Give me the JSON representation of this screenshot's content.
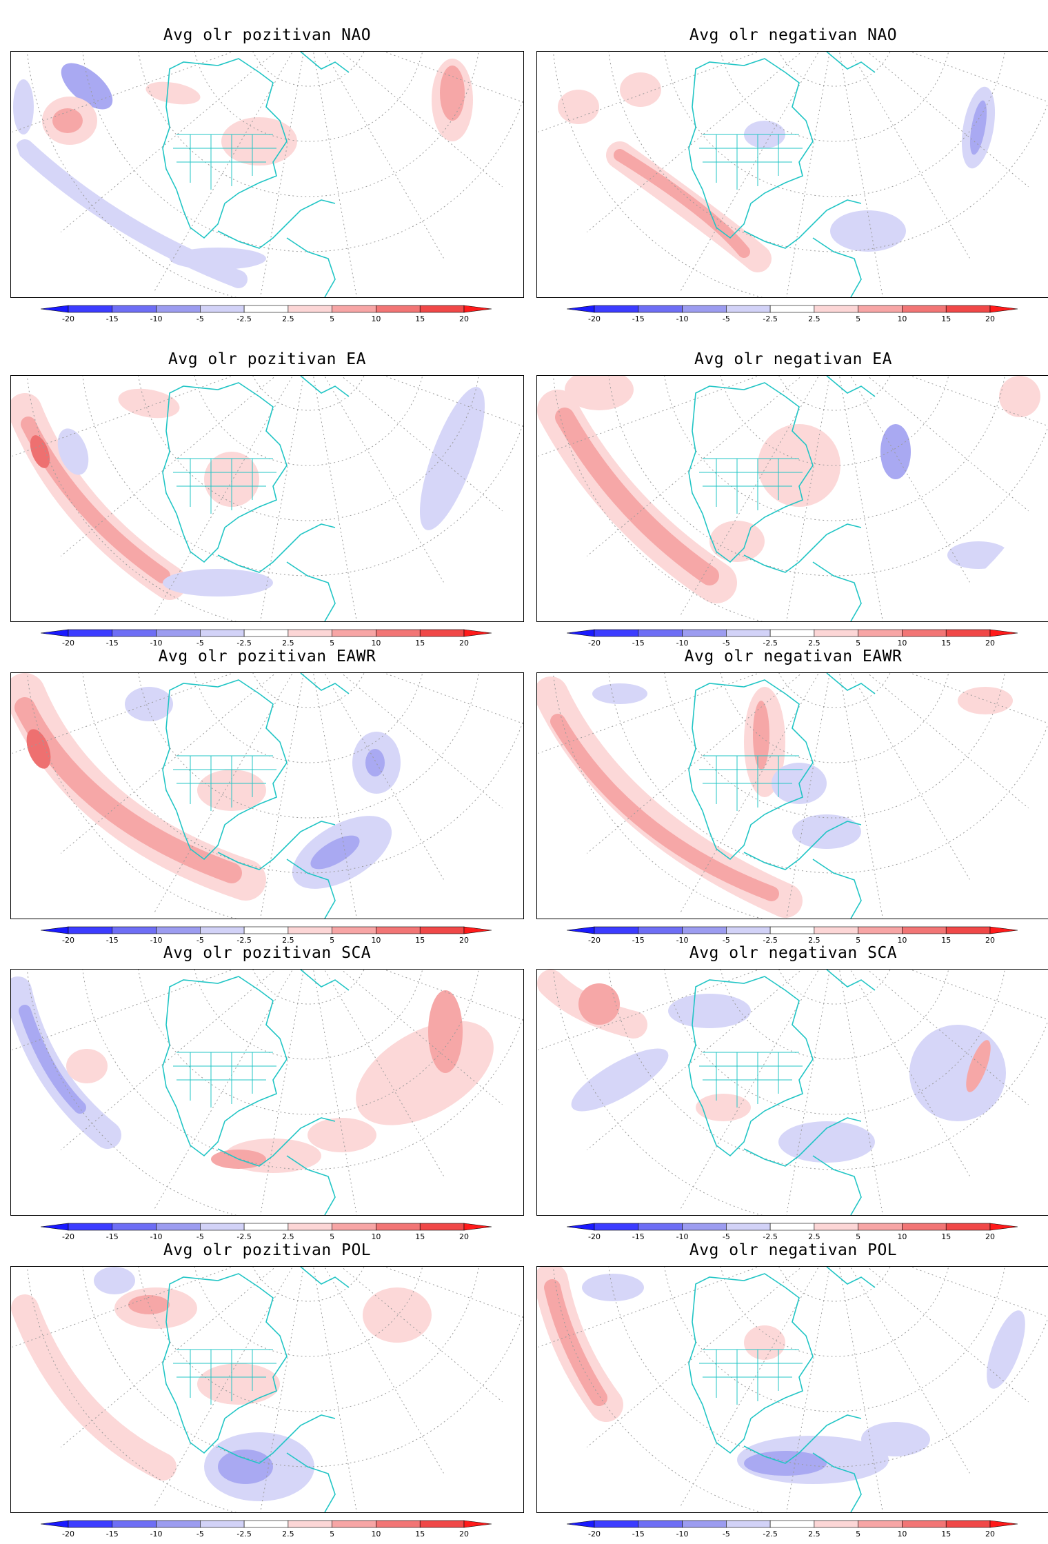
{
  "colorbar": {
    "tick_labels": [
      "-20",
      "-15",
      "-10",
      "-5",
      "-2.5",
      "2.5",
      "5",
      "10",
      "15",
      "20"
    ],
    "colors": [
      "#1a1aff",
      "#3c3cff",
      "#6e6ef5",
      "#9c9cf0",
      "#d2d2f7",
      "#ffffff",
      "#fcd6d6",
      "#f7a5a5",
      "#f27575",
      "#f04848",
      "#ff1a1a"
    ]
  },
  "style": {
    "coast_color": "#21c5c5",
    "grid_color": "#9a9a9a"
  },
  "panels": [
    {
      "title": "Avg olr pozitivan NAO"
    },
    {
      "title": "Avg olr negativan NAO"
    },
    {
      "title": "Avg olr pozitivan EA"
    },
    {
      "title": "Avg olr negativan EA"
    },
    {
      "title": "Avg olr pozitivan EAWR"
    },
    {
      "title": "Avg olr negativan EAWR"
    },
    {
      "title": "Avg olr pozitivan SCA"
    },
    {
      "title": "Avg olr negativan SCA"
    },
    {
      "title": "Avg olr pozitivan POL"
    },
    {
      "title": "Avg olr negativan POL"
    }
  ]
}
